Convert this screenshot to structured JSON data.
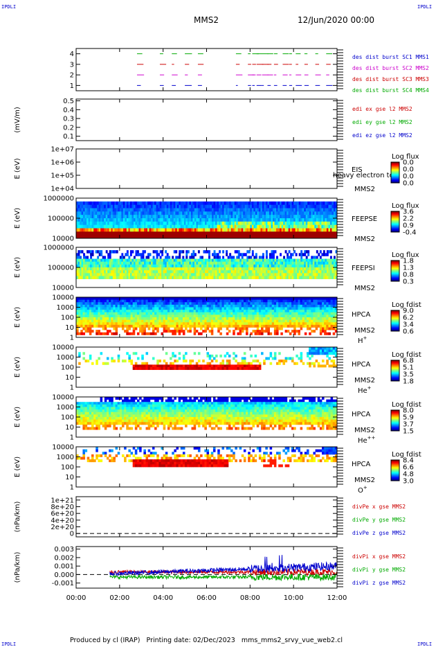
{
  "header": {
    "mission": "MMS2",
    "date": "12/Jun/2020 00:00",
    "corner_label": "IPDLI"
  },
  "footer": {
    "produced": "Produced by cl (IRAP)",
    "printing": "Printing date: 02/Dec/2023",
    "file": "mms_mms2_srvy_vue_web2.cl"
  },
  "chart_data": {
    "type": "multi-panel time series and spectrograms",
    "x_ticks": [
      "00:00",
      "02:00",
      "04:00",
      "06:00",
      "08:00",
      "10:00",
      "12:00"
    ],
    "x_range_hours": [
      0,
      12
    ],
    "panels": [
      {
        "id": "burst",
        "type": "segments",
        "ylim": [
          0.5,
          4.5
        ],
        "yticks": [
          "4",
          "3",
          "2",
          "1"
        ],
        "ylabel": "",
        "legend": [
          {
            "text": "des dist burst SC1 MMS1",
            "color": "#0000cc"
          },
          {
            "text": "des dist burst SC2 MMS2",
            "color": "#cc00cc"
          },
          {
            "text": "des dist burst SC3 MMS3",
            "color": "#cc0000"
          },
          {
            "text": "des dist burst SC4 MMS4",
            "color": "#00aa00"
          }
        ]
      },
      {
        "id": "edi",
        "type": "line",
        "ylim": [
          0.05,
          0.52
        ],
        "yticks": [
          "0.5",
          "0.4",
          "0.3",
          "0.2",
          "0.1"
        ],
        "ylabel": "(mV/m)",
        "legend": [
          {
            "text": "edi ex gse l2 MMS2",
            "color": "#cc0000"
          },
          {
            "text": "edi ey gse l2 MMS2",
            "color": "#00aa00"
          },
          {
            "text": "edi ez gse l2 MMS2",
            "color": "#0000cc"
          }
        ]
      },
      {
        "id": "eis",
        "type": "spectrogram",
        "yticks": [
          "1e+07",
          "1e+06",
          "1e+05",
          "1e+04"
        ],
        "ylabel": "E (eV)",
        "labels": [
          "EIS",
          "MMS2"
        ],
        "overlay": "heavy electron to",
        "colorbar_title": "Log flux",
        "colorbar_ticks": [
          "0.0",
          "0.0",
          "0.0",
          "0.0"
        ]
      },
      {
        "id": "feepse",
        "type": "spectrogram",
        "yticks": [
          "1000000",
          "100000",
          "10000"
        ],
        "ylabel": "E (eV)",
        "labels": [
          "FEEPSE",
          "MMS2"
        ],
        "colorbar_title": "Log flux",
        "colorbar_ticks": [
          "3.6",
          "2.2",
          "0.9",
          "-0.4"
        ]
      },
      {
        "id": "feepsi",
        "type": "spectrogram",
        "yticks": [
          "1000000",
          "100000",
          "10000"
        ],
        "ylabel": "E (eV)",
        "labels": [
          "FEEPSI",
          "MMS2"
        ],
        "colorbar_title": "Log flux",
        "colorbar_ticks": [
          "1.8",
          "1.3",
          "0.8",
          "0.3"
        ]
      },
      {
        "id": "hpca-h",
        "type": "spectrogram",
        "yticks": [
          "10000",
          "1000",
          "100",
          "10",
          "1"
        ],
        "ylabel": "E (eV)",
        "labels": [
          "HPCA",
          "MMS2",
          "H+"
        ],
        "colorbar_title": "Log fdist",
        "colorbar_ticks": [
          "9.0",
          "6.2",
          "3.4",
          "0.6"
        ]
      },
      {
        "id": "hpca-he",
        "type": "spectrogram",
        "yticks": [
          "10000",
          "1000",
          "100",
          "10",
          "1"
        ],
        "ylabel": "E (eV)",
        "labels": [
          "HPCA",
          "MMS2",
          "He+"
        ],
        "colorbar_title": "Log fdist",
        "colorbar_ticks": [
          "6.8",
          "5.1",
          "3.5",
          "1.8"
        ]
      },
      {
        "id": "hpca-hepp",
        "type": "spectrogram",
        "yticks": [
          "10000",
          "1000",
          "100",
          "10",
          "1"
        ],
        "ylabel": "E (eV)",
        "labels": [
          "HPCA",
          "MMS2",
          "He++"
        ],
        "colorbar_title": "Log fdist",
        "colorbar_ticks": [
          "8.0",
          "5.9",
          "3.7",
          "1.5"
        ]
      },
      {
        "id": "hpca-o",
        "type": "spectrogram",
        "yticks": [
          "10000",
          "1000",
          "100",
          "10",
          "1"
        ],
        "ylabel": "E (eV)",
        "labels": [
          "HPCA",
          "MMS2",
          "O+"
        ],
        "colorbar_title": "Log fdist",
        "colorbar_ticks": [
          "8.4",
          "6.6",
          "4.8",
          "3.0"
        ]
      },
      {
        "id": "divpe",
        "type": "line",
        "ylim": [
          -1e+20,
          1.1e+21
        ],
        "yticks": [
          "1e+21",
          "8e+20",
          "6e+20",
          "4e+20",
          "2e+20",
          "0"
        ],
        "ylabel": "(nPa/km)",
        "legend": [
          {
            "text": "divPe x gse MMS2",
            "color": "#cc0000"
          },
          {
            "text": "divPe y gse MMS2",
            "color": "#00aa00"
          },
          {
            "text": "divPe z gse MMS2",
            "color": "#0000cc"
          }
        ]
      },
      {
        "id": "divpi",
        "type": "line",
        "ylim": [
          -0.0016,
          0.0033
        ],
        "yticks": [
          "0.003",
          "0.002",
          "0.001",
          "0.000",
          "-0.001"
        ],
        "ylabel": "(nPa/km)",
        "legend": [
          {
            "text": "divPi x gse MMS2",
            "color": "#cc0000"
          },
          {
            "text": "divPi y gse MMS2",
            "color": "#00aa00"
          },
          {
            "text": "divPi z gse MMS2",
            "color": "#0000cc"
          }
        ]
      }
    ]
  }
}
